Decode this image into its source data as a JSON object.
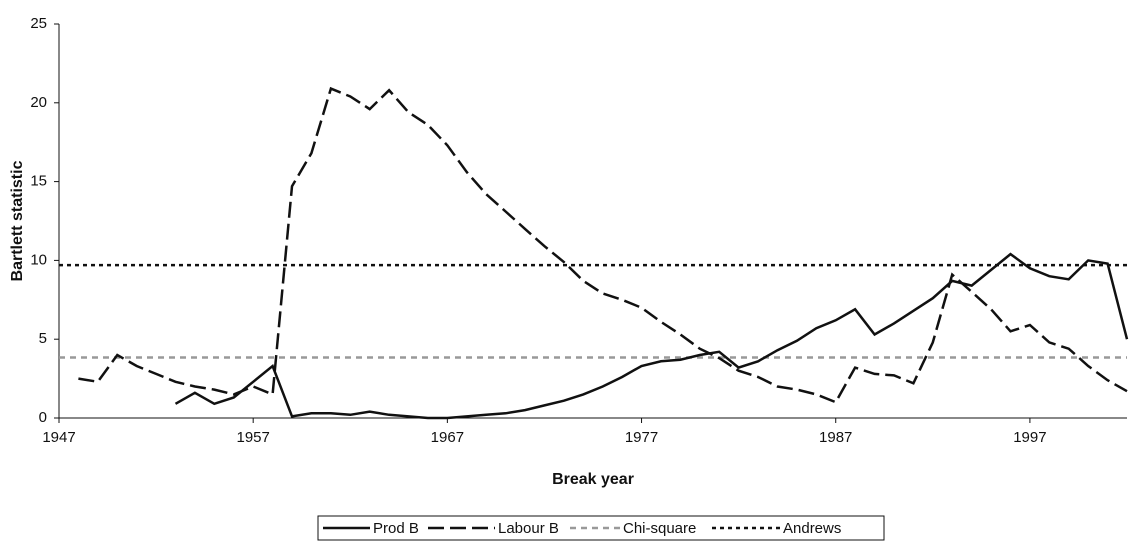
{
  "chart_data": {
    "type": "line",
    "xlabel": "Break year",
    "ylabel": "Bartlett statistic",
    "x": [
      1948,
      1949,
      1950,
      1951,
      1952,
      1953,
      1954,
      1955,
      1956,
      1957,
      1958,
      1959,
      1960,
      1961,
      1962,
      1963,
      1964,
      1965,
      1966,
      1967,
      1968,
      1969,
      1970,
      1971,
      1972,
      1973,
      1974,
      1975,
      1976,
      1977,
      1978,
      1979,
      1980,
      1981,
      1982,
      1983,
      1984,
      1985,
      1986,
      1987,
      1988,
      1989,
      1990,
      1991,
      1992,
      1993,
      1994,
      1995,
      1996,
      1997,
      1998,
      1999,
      2000,
      2001,
      2002
    ],
    "series": [
      {
        "name": "Prod B",
        "color": "#111111",
        "line_style": "solid",
        "values": [
          null,
          null,
          null,
          null,
          null,
          0.9,
          1.6,
          0.9,
          1.3,
          2.3,
          3.3,
          0.1,
          0.3,
          0.3,
          0.2,
          0.4,
          0.2,
          0.1,
          0.0,
          0.0,
          0.1,
          0.2,
          0.3,
          0.5,
          0.8,
          1.1,
          1.5,
          2.0,
          2.6,
          3.3,
          3.6,
          3.7,
          4.0,
          4.2,
          3.2,
          3.6,
          4.3,
          4.9,
          5.7,
          6.2,
          6.9,
          5.3,
          6.0,
          6.8,
          7.6,
          8.7,
          8.4,
          9.4,
          10.4,
          9.5,
          9.0,
          8.8,
          10.0,
          9.8,
          5.0
        ]
      },
      {
        "name": "Labour B",
        "color": "#111111",
        "line_style": "dashed",
        "values": [
          2.5,
          2.3,
          4.0,
          3.3,
          2.8,
          2.3,
          2.0,
          1.8,
          1.5,
          2.0,
          1.5,
          14.7,
          16.8,
          20.9,
          20.4,
          19.6,
          20.8,
          19.4,
          18.6,
          17.3,
          15.6,
          14.2,
          13.1,
          12.0,
          10.9,
          9.9,
          8.7,
          7.9,
          7.5,
          7.0,
          6.1,
          5.3,
          4.4,
          3.8,
          3.0,
          2.6,
          2.0,
          1.8,
          1.5,
          1.0,
          3.2,
          2.8,
          2.7,
          2.2,
          4.8,
          9.1,
          8.0,
          6.9,
          5.5,
          5.9,
          4.8,
          4.4,
          3.3,
          2.4,
          1.7
        ]
      }
    ],
    "reference_lines": [
      {
        "name": "Chi-square",
        "color": "#999999",
        "line_style": "short-dashed",
        "value": 3.84
      },
      {
        "name": "Andrews",
        "color": "#111111",
        "line_style": "dotted",
        "value": 9.7
      }
    ],
    "xlim": [
      1947,
      2002
    ],
    "xticks": [
      1947,
      1957,
      1967,
      1977,
      1987,
      1997
    ],
    "ylim": [
      0,
      25
    ],
    "yticks": [
      0,
      5,
      10,
      15,
      20,
      25
    ],
    "legend": "bottom"
  }
}
